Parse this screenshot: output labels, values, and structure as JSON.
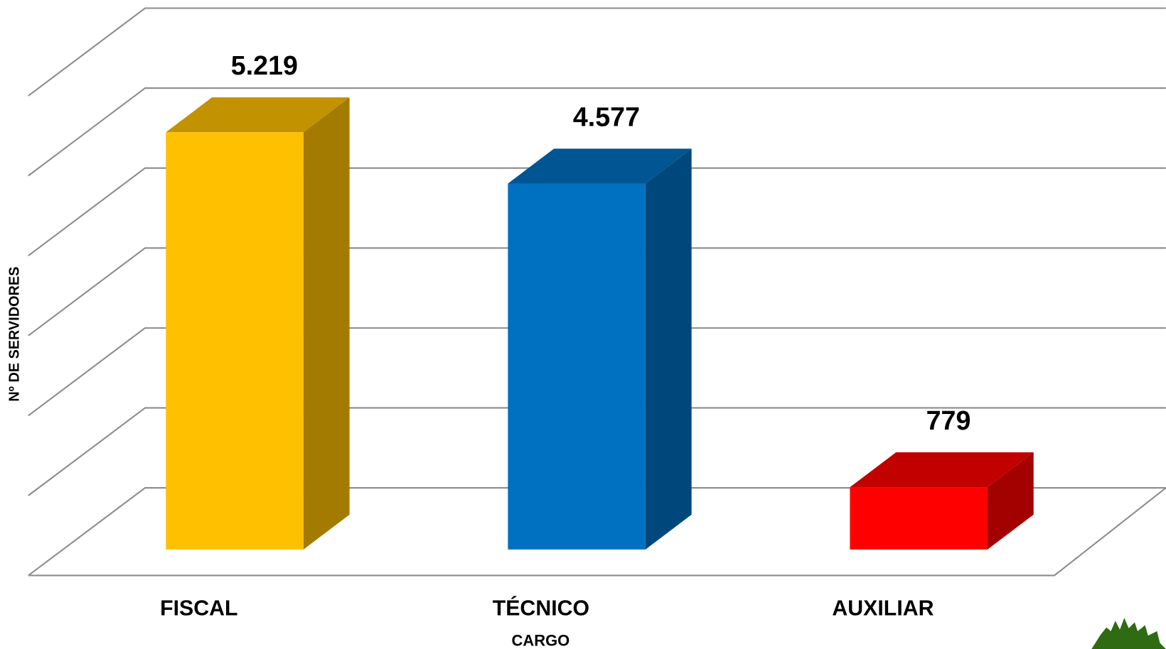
{
  "chart_data": {
    "type": "bar3d",
    "categories": [
      "FISCAL",
      "TÉCNICO",
      "AUXILIAR"
    ],
    "values": [
      5219,
      4577,
      779
    ],
    "value_labels": [
      "5.219",
      "4.577",
      "779"
    ],
    "colors": [
      "#ffc000",
      "#0070c0",
      "#ff0000"
    ],
    "ylim": [
      0,
      6000
    ],
    "yticks": [
      0,
      1000,
      2000,
      3000,
      4000,
      5000,
      6000
    ],
    "grid": true,
    "x_label": "CARGO",
    "y_label": "Nº DE SERVIDORES"
  }
}
